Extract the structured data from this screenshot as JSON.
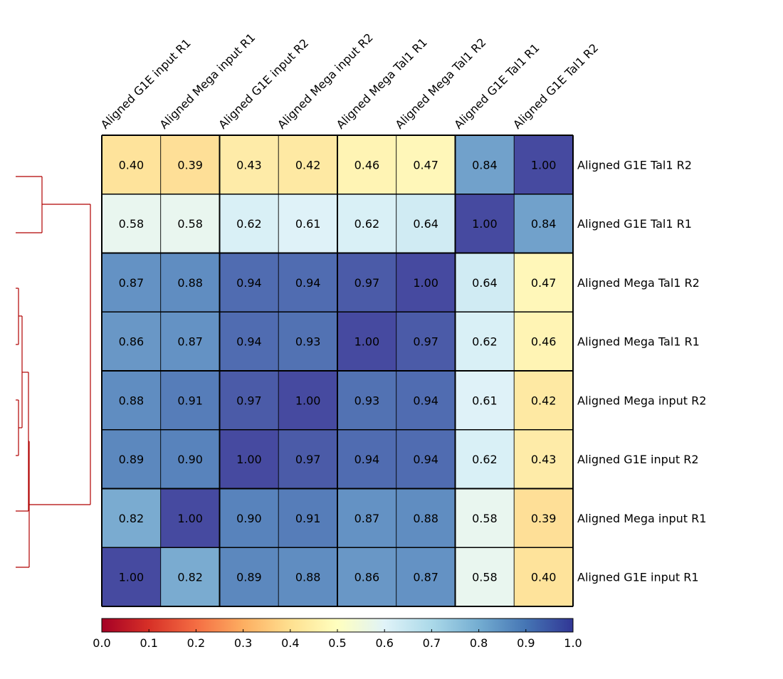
{
  "chart_data": {
    "type": "heatmap",
    "title": "",
    "columns": [
      "Aligned G1E input R1",
      "Aligned Mega input R1",
      "Aligned G1E input R2",
      "Aligned Mega input R2",
      "Aligned Mega Tal1 R1",
      "Aligned Mega Tal1 R2",
      "Aligned G1E Tal1 R1",
      "Aligned G1E Tal1 R2"
    ],
    "rows": [
      "Aligned G1E Tal1 R2",
      "Aligned G1E Tal1 R1",
      "Aligned Mega Tal1 R2",
      "Aligned Mega Tal1 R1",
      "Aligned Mega input R2",
      "Aligned G1E input R2",
      "Aligned Mega input R1",
      "Aligned G1E input R1"
    ],
    "values": [
      [
        0.4,
        0.39,
        0.43,
        0.42,
        0.46,
        0.47,
        0.84,
        1.0
      ],
      [
        0.58,
        0.58,
        0.62,
        0.61,
        0.62,
        0.64,
        1.0,
        0.84
      ],
      [
        0.87,
        0.88,
        0.94,
        0.94,
        0.97,
        1.0,
        0.64,
        0.47
      ],
      [
        0.86,
        0.87,
        0.94,
        0.93,
        1.0,
        0.97,
        0.62,
        0.46
      ],
      [
        0.88,
        0.91,
        0.97,
        1.0,
        0.93,
        0.94,
        0.61,
        0.42
      ],
      [
        0.89,
        0.9,
        1.0,
        0.97,
        0.94,
        0.94,
        0.62,
        0.43
      ],
      [
        0.82,
        1.0,
        0.9,
        0.91,
        0.87,
        0.88,
        0.58,
        0.39
      ],
      [
        1.0,
        0.82,
        0.89,
        0.88,
        0.86,
        0.87,
        0.58,
        0.4
      ]
    ],
    "value_labels": [
      [
        "0.40",
        "0.39",
        "0.43",
        "0.42",
        "0.46",
        "0.47",
        "0.84",
        "1.00"
      ],
      [
        "0.58",
        "0.58",
        "0.62",
        "0.61",
        "0.62",
        "0.64",
        "1.00",
        "0.84"
      ],
      [
        "0.87",
        "0.88",
        "0.94",
        "0.94",
        "0.97",
        "1.00",
        "0.64",
        "0.47"
      ],
      [
        "0.86",
        "0.87",
        "0.94",
        "0.93",
        "1.00",
        "0.97",
        "0.62",
        "0.46"
      ],
      [
        "0.88",
        "0.91",
        "0.97",
        "1.00",
        "0.93",
        "0.94",
        "0.61",
        "0.42"
      ],
      [
        "0.89",
        "0.90",
        "1.00",
        "0.97",
        "0.94",
        "0.94",
        "0.62",
        "0.43"
      ],
      [
        "0.82",
        "1.00",
        "0.90",
        "0.91",
        "0.87",
        "0.88",
        "0.58",
        "0.39"
      ],
      [
        "1.00",
        "0.82",
        "0.89",
        "0.88",
        "0.86",
        "0.87",
        "0.58",
        "0.40"
      ]
    ],
    "colormap": "RdYlBu",
    "vmin": 0.0,
    "vmax": 1.0,
    "colorbar": {
      "placement": "bottom",
      "ticks": [
        "0.0",
        "0.1",
        "0.2",
        "0.3",
        "0.4",
        "0.5",
        "0.6",
        "0.7",
        "0.8",
        "0.9",
        "1.0"
      ]
    },
    "cluster_groups": [
      [
        0,
        1
      ],
      [
        2,
        3,
        4,
        5,
        6,
        7
      ]
    ],
    "dendrogram": {
      "placement": "left",
      "color": "#b00000"
    },
    "grid": true
  }
}
